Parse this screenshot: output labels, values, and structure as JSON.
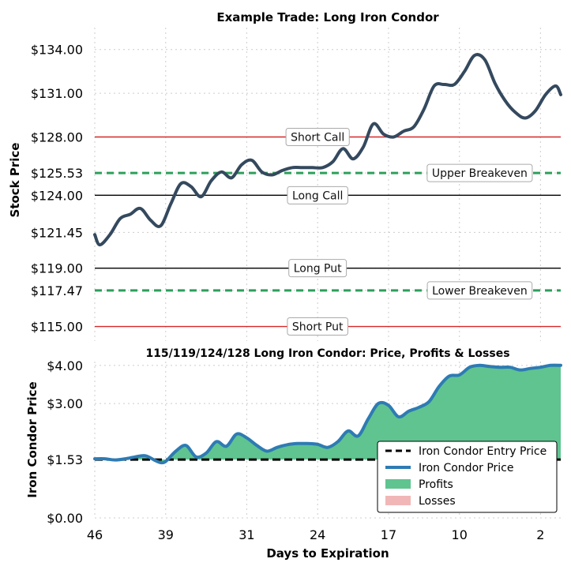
{
  "chart_data": [
    {
      "type": "line",
      "title": "Example Trade: Long Iron Condor",
      "ylabel": "Stock Price",
      "ylim": [
        114,
        135.5
      ],
      "xlim": [
        46,
        0
      ],
      "yticks": [
        {
          "value": 115.0,
          "label": "$115.00"
        },
        {
          "value": 117.47,
          "label": "$117.47"
        },
        {
          "value": 119.0,
          "label": "$119.00"
        },
        {
          "value": 121.45,
          "label": "$121.45"
        },
        {
          "value": 124.0,
          "label": "$124.00"
        },
        {
          "value": 125.53,
          "label": "$125.53"
        },
        {
          "value": 128.0,
          "label": "$128.00"
        },
        {
          "value": 131.0,
          "label": "$131.00"
        },
        {
          "value": 134.0,
          "label": "$134.00"
        }
      ],
      "levels": [
        {
          "name": "Short Call",
          "value": 128.0,
          "color": "#d62728",
          "style": "solid",
          "label_x": 24
        },
        {
          "name": "Upper Breakeven",
          "value": 125.53,
          "color": "#2ca05a",
          "style": "dashed",
          "label_x": 8
        },
        {
          "name": "Long Call",
          "value": 124.0,
          "color": "#000000",
          "style": "solid",
          "label_x": 24
        },
        {
          "name": "Long Put",
          "value": 119.0,
          "color": "#000000",
          "style": "solid",
          "label_x": 24
        },
        {
          "name": "Lower Breakeven",
          "value": 117.47,
          "color": "#2ca05a",
          "style": "dashed",
          "label_x": 8
        },
        {
          "name": "Short Put",
          "value": 115.0,
          "color": "#d62728",
          "style": "solid",
          "label_x": 24
        }
      ],
      "series": [
        {
          "color": "#34495e",
          "x": [
            46,
            45.5,
            44.5,
            43.5,
            42.5,
            41.5,
            40.5,
            39.5,
            38.5,
            37.5,
            36.5,
            35.5,
            34.5,
            33.5,
            32.5,
            31.5,
            30.5,
            29.5,
            28.5,
            27.5,
            26.5,
            25.5,
            24.5,
            23.5,
            22.5,
            21.5,
            20.5,
            19.5,
            18.5,
            17.5,
            16.5,
            15.5,
            14.5,
            13.5,
            12.5,
            11.5,
            10.5,
            9.5,
            8.5,
            7.5,
            6.5,
            5.5,
            4.5,
            3.5,
            2.5,
            1.5,
            0.5,
            0
          ],
          "y": [
            121.3,
            120.6,
            121.3,
            122.4,
            122.7,
            123.1,
            122.3,
            121.9,
            123.4,
            124.8,
            124.6,
            123.9,
            125.0,
            125.6,
            125.2,
            126.1,
            126.4,
            125.6,
            125.4,
            125.7,
            125.9,
            125.9,
            125.9,
            125.9,
            126.3,
            127.2,
            126.5,
            127.3,
            128.9,
            128.2,
            128.0,
            128.4,
            128.7,
            129.9,
            131.5,
            131.6,
            131.6,
            132.5,
            133.6,
            133.3,
            131.7,
            130.5,
            129.7,
            129.3,
            129.8,
            130.9,
            131.5,
            130.9
          ]
        }
      ]
    },
    {
      "type": "area",
      "title": "115/119/124/128 Long Iron Condor: Price, Profits & Losses",
      "xlabel": "Days to Expiration",
      "ylabel": "Iron Condor Price",
      "ylim": [
        0,
        4.1
      ],
      "xlim": [
        46,
        0
      ],
      "xticks": [
        {
          "value": 46,
          "label": "46"
        },
        {
          "value": 39,
          "label": "39"
        },
        {
          "value": 31,
          "label": "31"
        },
        {
          "value": 24,
          "label": "24"
        },
        {
          "value": 17,
          "label": "17"
        },
        {
          "value": 10,
          "label": "10"
        },
        {
          "value": 2,
          "label": "2"
        }
      ],
      "yticks": [
        {
          "value": 0.0,
          "label": "$0.00"
        },
        {
          "value": 1.53,
          "label": "$1.53"
        },
        {
          "value": 3.0,
          "label": "$3.00"
        },
        {
          "value": 4.0,
          "label": "$4.00"
        }
      ],
      "entry_price": 1.53,
      "legend_position": "lower-right",
      "legend": [
        {
          "name": "Iron Condor Entry Price",
          "kind": "dashed-line",
          "color": "#000000"
        },
        {
          "name": "Iron Condor Price",
          "kind": "line",
          "color": "#2e7bb4"
        },
        {
          "name": "Profits",
          "kind": "patch",
          "color": "#5fc490"
        },
        {
          "name": "Losses",
          "kind": "patch",
          "color": "#f1b7b7"
        }
      ],
      "series": [
        {
          "name": "Iron Condor Price",
          "color": "#2e7bb4",
          "x": [
            46,
            45,
            44,
            43,
            42,
            41,
            40,
            39.5,
            39,
            38,
            37,
            36,
            35,
            34,
            33,
            32,
            31,
            30,
            29,
            28,
            27,
            26,
            25,
            24,
            23,
            22,
            21,
            20,
            19,
            18,
            17,
            16,
            15,
            14,
            13,
            12,
            11,
            10,
            9,
            8,
            7,
            6,
            5,
            4,
            3,
            2,
            1,
            0
          ],
          "y": [
            1.55,
            1.55,
            1.52,
            1.55,
            1.6,
            1.63,
            1.5,
            1.45,
            1.48,
            1.75,
            1.9,
            1.6,
            1.7,
            2.0,
            1.88,
            2.2,
            2.1,
            1.9,
            1.75,
            1.85,
            1.92,
            1.95,
            1.95,
            1.93,
            1.85,
            2.0,
            2.28,
            2.15,
            2.6,
            3.0,
            2.95,
            2.65,
            2.8,
            2.9,
            3.05,
            3.45,
            3.72,
            3.75,
            3.95,
            4.0,
            3.97,
            3.95,
            3.95,
            3.88,
            3.92,
            3.95,
            4.0,
            4.0
          ]
        }
      ]
    }
  ]
}
